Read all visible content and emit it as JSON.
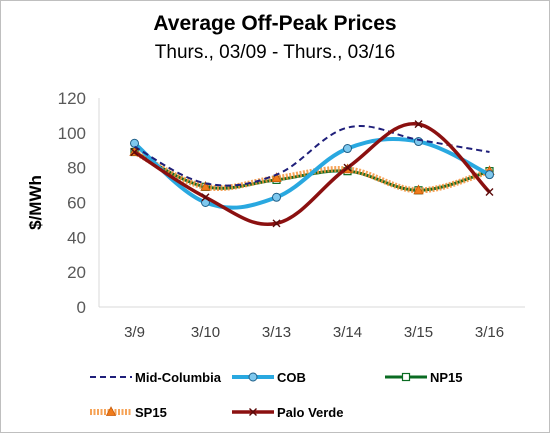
{
  "chart_data": {
    "type": "line",
    "title": "Average Off-Peak Prices",
    "subtitle": "Thurs., 03/09 - Thurs., 03/16",
    "xlabel": "",
    "ylabel": "$/MWh",
    "ylim": [
      0,
      120
    ],
    "yticks": [
      0,
      20,
      40,
      60,
      80,
      100,
      120
    ],
    "grid": false,
    "legend": "bottom",
    "categories": [
      "3/9",
      "3/10",
      "3/13",
      "3/14",
      "3/15",
      "3/16"
    ],
    "series": [
      {
        "name": "Mid-Columbia",
        "values": [
          92,
          71,
          76,
          103,
          96,
          89
        ],
        "color": "#1f1f7a",
        "style": "dashed",
        "marker": "none"
      },
      {
        "name": "COB",
        "values": [
          94,
          60,
          63,
          91,
          95,
          76
        ],
        "color": "#29a8e0",
        "style": "solid",
        "marker": "circle"
      },
      {
        "name": "NP15",
        "values": [
          89,
          69,
          73,
          78,
          67,
          78
        ],
        "color": "#0a6b22",
        "style": "solid",
        "marker": "square"
      },
      {
        "name": "SP15",
        "values": [
          89,
          69,
          74,
          79,
          67,
          78
        ],
        "color": "#f5933a",
        "style": "dotted-thick",
        "marker": "triangle"
      },
      {
        "name": "Palo Verde",
        "values": [
          89,
          63,
          48,
          80,
          105,
          66
        ],
        "color": "#8b1010",
        "style": "solid",
        "marker": "x"
      }
    ]
  }
}
